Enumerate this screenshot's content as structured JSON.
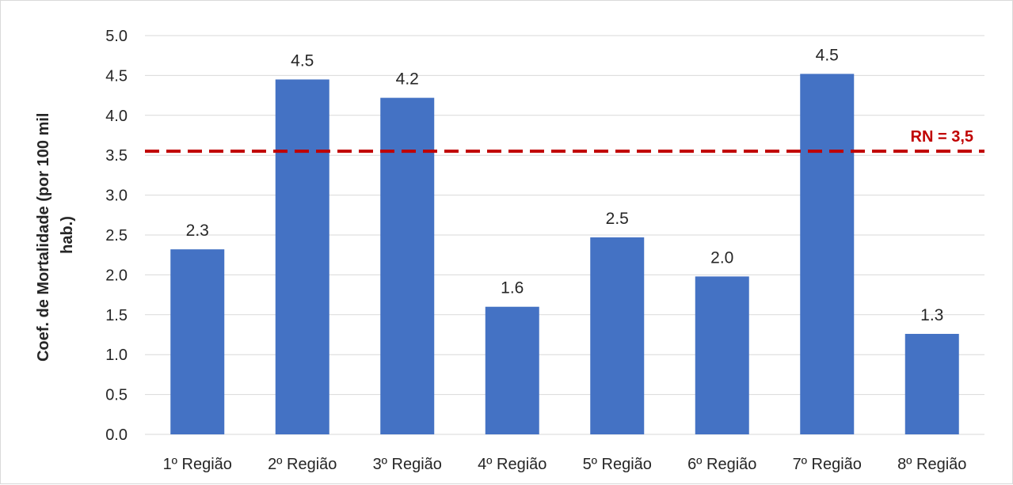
{
  "chart_data": {
    "type": "bar",
    "categories": [
      "1º Região",
      "2º Região",
      "3º Região",
      "4º Região",
      "5º Região",
      "6º Região",
      "7º Região",
      "8º Região"
    ],
    "values": [
      2.32,
      4.45,
      4.22,
      1.6,
      2.47,
      1.98,
      4.52,
      1.26
    ],
    "data_labels": [
      "2.3",
      "4.5",
      "4.2",
      "1.6",
      "2.5",
      "2.0",
      "4.5",
      "1.3"
    ],
    "title": "",
    "xlabel": "",
    "ylabel_lines": [
      "Coef. de Mortalidade (por 100 mil",
      "hab.)"
    ],
    "ylim": [
      0,
      5
    ],
    "yticks": [
      "0.0",
      "0.5",
      "1.0",
      "1.5",
      "2.0",
      "2.5",
      "3.0",
      "3.5",
      "4.0",
      "4.5",
      "5.0"
    ],
    "grid": true,
    "legend": "none",
    "reference_line": {
      "value": 3.55,
      "label": "RN = 3,5",
      "style": "dashed"
    },
    "colors": {
      "bar": "#4472c4",
      "reference": "#c00000",
      "grid": "#d9d9d9",
      "text": "#262626"
    }
  }
}
